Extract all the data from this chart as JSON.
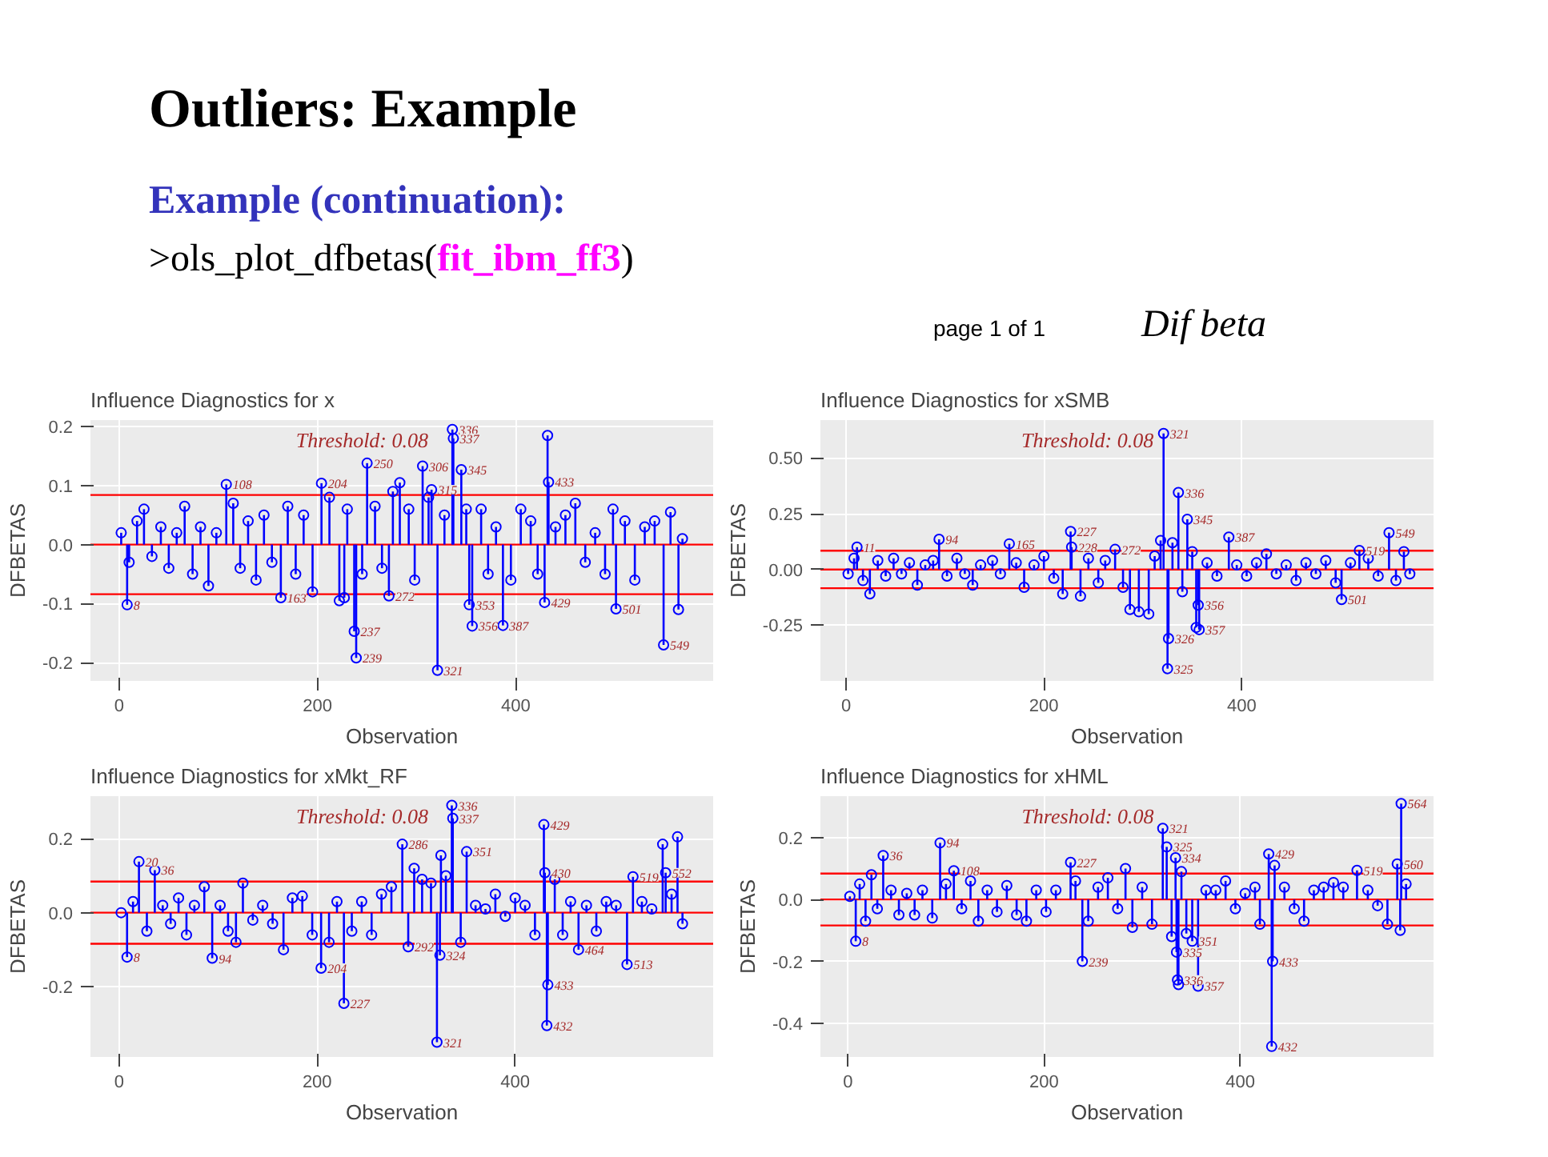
{
  "chart_data": [
    {
      "type": "other",
      "title": "Outliers: Example",
      "subtitle": "Example (continuation):",
      "annotations": [
        ">ols_plot_dfbetas(",
        "fit_ibm_ff3",
        ")",
        "page 1 of 1",
        "Dif beta"
      ]
    },
    {
      "type": "lollipop",
      "title": "Influence Diagnostics for x",
      "xlabel": "Observation",
      "ylabel": "DFBETAS",
      "marker": "circle",
      "grid": true,
      "xlim": [
        -29,
        599
      ],
      "xticks": [
        0,
        200,
        400
      ],
      "ylim": [
        -0.231,
        0.211
      ],
      "yticks": [
        {
          "value": -0.2,
          "label": "-0.2"
        },
        {
          "value": -0.1,
          "label": "-0.1"
        },
        {
          "value": 0,
          "label": "0.0"
        },
        {
          "value": 0.1,
          "label": "0.1"
        },
        {
          "value": 0.2,
          "label": "0.2"
        }
      ],
      "ref_lines": [
        {
          "axis": "y",
          "value": 0.084,
          "color": "#ff0000"
        },
        {
          "axis": "y",
          "value": 0,
          "color": "#ff0000"
        },
        {
          "axis": "y",
          "value": -0.084,
          "color": "#ff0000"
        }
      ],
      "series": [
        {
          "color": "#0000ff",
          "x": [
            2,
            8,
            10,
            18,
            25,
            33,
            42,
            50,
            58,
            66,
            74,
            82,
            90,
            98,
            108,
            115,
            122,
            130,
            138,
            146,
            154,
            163,
            170,
            178,
            186,
            195,
            204,
            212,
            222,
            227,
            230,
            237,
            239,
            245,
            250,
            258,
            265,
            272,
            276,
            283,
            292,
            298,
            306,
            312,
            315,
            321,
            328,
            336,
            337,
            345,
            350,
            353,
            356,
            365,
            372,
            380,
            387,
            395,
            405,
            415,
            422,
            429,
            432,
            433,
            440,
            450,
            460,
            470,
            480,
            490,
            498,
            501,
            510,
            520,
            530,
            540,
            549,
            556,
            564,
            568
          ],
          "values": [
            0.02,
            -0.102,
            -0.03,
            0.04,
            0.06,
            -0.02,
            0.03,
            -0.04,
            0.02,
            0.065,
            -0.05,
            0.03,
            -0.07,
            0.02,
            0.102,
            0.07,
            -0.04,
            0.04,
            -0.06,
            0.05,
            -0.03,
            -0.09,
            0.065,
            -0.05,
            0.05,
            -0.08,
            0.104,
            0.08,
            -0.095,
            -0.09,
            0.06,
            -0.147,
            -0.192,
            -0.05,
            0.138,
            0.065,
            -0.04,
            -0.087,
            0.09,
            0.105,
            0.06,
            -0.06,
            0.133,
            0.08,
            0.093,
            -0.213,
            0.05,
            0.195,
            0.18,
            0.127,
            0.06,
            -0.102,
            -0.138,
            0.06,
            -0.05,
            0.03,
            -0.137,
            -0.06,
            0.06,
            0.04,
            -0.05,
            -0.098,
            0.185,
            0.106,
            0.03,
            0.05,
            0.07,
            -0.03,
            0.02,
            -0.05,
            0.06,
            -0.109,
            0.04,
            -0.06,
            0.03,
            0.04,
            -0.17,
            0.055,
            -0.11,
            0.01
          ]
        }
      ],
      "annotations": [
        "Threshold: 0.08",
        {
          "text": "8",
          "x": 8,
          "y": -0.102
        },
        {
          "text": "108",
          "x": 108,
          "y": 0.102
        },
        {
          "text": "163",
          "x": 163,
          "y": -0.09
        },
        {
          "text": "204",
          "x": 204,
          "y": 0.104
        },
        {
          "text": "237",
          "x": 237,
          "y": -0.147
        },
        {
          "text": "239",
          "x": 239,
          "y": -0.192
        },
        {
          "text": "250",
          "x": 250,
          "y": 0.138
        },
        {
          "text": "272",
          "x": 272,
          "y": -0.087
        },
        {
          "text": "306",
          "x": 306,
          "y": 0.133
        },
        {
          "text": "315",
          "x": 315,
          "y": 0.093
        },
        {
          "text": "321",
          "x": 321,
          "y": -0.213
        },
        {
          "text": "336",
          "x": 336,
          "y": 0.195
        },
        {
          "text": "337",
          "x": 337,
          "y": 0.18
        },
        {
          "text": "345",
          "x": 345,
          "y": 0.127
        },
        {
          "text": "353",
          "x": 353,
          "y": -0.102
        },
        {
          "text": "356",
          "x": 356,
          "y": -0.138
        },
        {
          "text": "387",
          "x": 387,
          "y": -0.137
        },
        {
          "text": "429",
          "x": 429,
          "y": -0.098
        },
        {
          "text": "433",
          "x": 433,
          "y": 0.106
        },
        {
          "text": "501",
          "x": 501,
          "y": -0.109
        },
        {
          "text": "549",
          "x": 549,
          "y": -0.17
        }
      ]
    },
    {
      "type": "lollipop",
      "title": "Influence Diagnostics for xSMB",
      "xlabel": "Observation",
      "ylabel": "DFBETAS",
      "marker": "circle",
      "grid": true,
      "xlim": [
        -26,
        594
      ],
      "xticks": [
        0,
        200,
        400
      ],
      "ylim": [
        -0.5,
        0.67
      ],
      "yticks": [
        {
          "value": -0.25,
          "label": "-0.25"
        },
        {
          "value": 0,
          "label": "0.00"
        },
        {
          "value": 0.25,
          "label": "0.25"
        },
        {
          "value": 0.5,
          "label": "0.50"
        }
      ],
      "ref_lines": [
        {
          "axis": "y",
          "value": 0.084,
          "color": "#ff0000"
        },
        {
          "axis": "y",
          "value": 0,
          "color": "#ff0000"
        },
        {
          "axis": "y",
          "value": -0.084,
          "color": "#ff0000"
        }
      ],
      "series": [
        {
          "color": "#0000ff",
          "x": [
            2,
            8,
            11,
            17,
            24,
            32,
            40,
            48,
            56,
            64,
            72,
            80,
            88,
            94,
            102,
            112,
            120,
            128,
            136,
            148,
            156,
            165,
            172,
            180,
            190,
            200,
            210,
            219,
            227,
            228,
            237,
            245,
            255,
            262,
            272,
            280,
            287,
            296,
            306,
            312,
            318,
            321,
            325,
            326,
            330,
            336,
            340,
            345,
            350,
            354,
            356,
            357,
            365,
            375,
            387,
            395,
            405,
            415,
            425,
            435,
            445,
            455,
            465,
            475,
            485,
            495,
            501,
            510,
            519,
            528,
            538,
            549,
            556,
            564,
            570
          ],
          "values": [
            -0.02,
            0.05,
            0.1,
            -0.05,
            -0.11,
            0.04,
            -0.03,
            0.05,
            -0.02,
            0.03,
            -0.07,
            0.02,
            0.04,
            0.135,
            -0.03,
            0.05,
            -0.02,
            -0.07,
            0.02,
            0.04,
            -0.02,
            0.115,
            0.03,
            -0.08,
            0.02,
            0.06,
            -0.04,
            -0.11,
            0.17,
            0.1,
            -0.12,
            0.05,
            -0.06,
            0.04,
            0.09,
            -0.08,
            -0.18,
            -0.19,
            -0.2,
            0.06,
            0.13,
            0.61,
            -0.445,
            -0.31,
            0.12,
            0.345,
            -0.1,
            0.225,
            0.08,
            -0.26,
            -0.16,
            -0.27,
            0.03,
            -0.03,
            0.145,
            0.02,
            -0.03,
            0.03,
            0.07,
            -0.02,
            0.02,
            -0.05,
            0.03,
            -0.02,
            0.04,
            -0.06,
            -0.135,
            0.03,
            0.085,
            0.05,
            -0.03,
            0.165,
            -0.05,
            0.08,
            -0.02
          ]
        }
      ],
      "annotations": [
        "Threshold: 0.08",
        {
          "text": "11",
          "x": 11,
          "y": 0.1
        },
        {
          "text": "94",
          "x": 94,
          "y": 0.135
        },
        {
          "text": "165",
          "x": 165,
          "y": 0.115
        },
        {
          "text": "227",
          "x": 227,
          "y": 0.17
        },
        {
          "text": "228",
          "x": 228,
          "y": 0.1
        },
        {
          "text": "272",
          "x": 272,
          "y": 0.09
        },
        {
          "text": "321",
          "x": 321,
          "y": 0.61
        },
        {
          "text": "325",
          "x": 325,
          "y": -0.445
        },
        {
          "text": "326",
          "x": 326,
          "y": -0.31
        },
        {
          "text": "336",
          "x": 336,
          "y": 0.345
        },
        {
          "text": "345",
          "x": 345,
          "y": 0.225
        },
        {
          "text": "356",
          "x": 356,
          "y": -0.16
        },
        {
          "text": "357",
          "x": 357,
          "y": -0.27
        },
        {
          "text": "387",
          "x": 387,
          "y": 0.145
        },
        {
          "text": "501",
          "x": 501,
          "y": -0.135
        },
        {
          "text": "519",
          "x": 519,
          "y": 0.085
        },
        {
          "text": "549",
          "x": 549,
          "y": 0.165
        }
      ]
    },
    {
      "type": "lollipop",
      "title": "Influence Diagnostics for xMkt_RF",
      "xlabel": "Observation",
      "ylabel": "DFBETAS",
      "marker": "circle",
      "grid": true,
      "xlim": [
        -29,
        600
      ],
      "xticks": [
        0,
        200,
        400
      ],
      "ylim": [
        -0.39,
        0.315
      ],
      "yticks": [
        {
          "value": -0.2,
          "label": "-0.2"
        },
        {
          "value": 0,
          "label": "0.0"
        },
        {
          "value": 0.2,
          "label": "0.2"
        }
      ],
      "ref_lines": [
        {
          "axis": "y",
          "value": 0.084,
          "color": "#ff0000"
        },
        {
          "axis": "y",
          "value": 0,
          "color": "#ff0000"
        },
        {
          "axis": "y",
          "value": -0.084,
          "color": "#ff0000"
        }
      ],
      "series": [
        {
          "color": "#0000ff",
          "x": [
            2,
            8,
            14,
            20,
            28,
            36,
            44,
            52,
            60,
            68,
            76,
            86,
            94,
            102,
            110,
            118,
            125,
            135,
            145,
            155,
            166,
            175,
            185,
            195,
            204,
            212,
            220,
            227,
            235,
            245,
            255,
            265,
            275,
            286,
            292,
            298,
            306,
            315,
            321,
            324,
            325,
            330,
            336,
            337,
            345,
            351,
            360,
            370,
            380,
            390,
            400,
            410,
            420,
            429,
            430,
            432,
            433,
            440,
            448,
            456,
            464,
            472,
            482,
            492,
            502,
            513,
            519,
            528,
            538,
            549,
            552,
            558,
            564,
            569
          ],
          "values": [
            0.0,
            -0.12,
            0.03,
            0.138,
            -0.05,
            0.115,
            0.02,
            -0.03,
            0.04,
            -0.06,
            0.02,
            0.07,
            -0.123,
            0.02,
            -0.05,
            -0.08,
            0.08,
            -0.02,
            0.02,
            -0.03,
            -0.1,
            0.04,
            0.045,
            -0.06,
            -0.15,
            -0.08,
            0.03,
            -0.245,
            -0.05,
            0.03,
            -0.06,
            0.05,
            0.07,
            0.185,
            -0.092,
            0.12,
            0.09,
            0.08,
            -0.35,
            -0.115,
            0.155,
            0.1,
            0.29,
            0.255,
            -0.08,
            0.165,
            0.02,
            0.01,
            0.05,
            -0.01,
            0.04,
            0.02,
            -0.06,
            0.238,
            0.108,
            -0.305,
            -0.195,
            0.09,
            -0.06,
            0.03,
            -0.1,
            0.02,
            -0.05,
            0.03,
            0.02,
            -0.14,
            0.097,
            0.03,
            0.01,
            0.185,
            0.108,
            0.05,
            0.205,
            -0.03
          ]
        }
      ],
      "annotations": [
        "Threshold: 0.08",
        {
          "text": "8",
          "x": 8,
          "y": -0.12
        },
        {
          "text": "20",
          "x": 20,
          "y": 0.138
        },
        {
          "text": "36",
          "x": 36,
          "y": 0.115
        },
        {
          "text": "94",
          "x": 94,
          "y": -0.123
        },
        {
          "text": "204",
          "x": 204,
          "y": -0.15
        },
        {
          "text": "227",
          "x": 227,
          "y": -0.245
        },
        {
          "text": "286",
          "x": 286,
          "y": 0.185
        },
        {
          "text": "292",
          "x": 292,
          "y": -0.092
        },
        {
          "text": "321",
          "x": 321,
          "y": -0.35
        },
        {
          "text": "324",
          "x": 324,
          "y": -0.115
        },
        {
          "text": "336",
          "x": 336,
          "y": 0.29
        },
        {
          "text": "337",
          "x": 337,
          "y": 0.255
        },
        {
          "text": "351",
          "x": 351,
          "y": 0.165
        },
        {
          "text": "429",
          "x": 429,
          "y": 0.238
        },
        {
          "text": "430",
          "x": 430,
          "y": 0.108
        },
        {
          "text": "433",
          "x": 433,
          "y": -0.195
        },
        {
          "text": "432",
          "x": 432,
          "y": -0.305
        },
        {
          "text": "464",
          "x": 464,
          "y": -0.1
        },
        {
          "text": "513",
          "x": 513,
          "y": -0.14
        },
        {
          "text": "519",
          "x": 519,
          "y": 0.097
        },
        {
          "text": "552",
          "x": 552,
          "y": 0.108
        }
      ]
    },
    {
      "type": "lollipop",
      "title": "Influence Diagnostics for xHML",
      "xlabel": "Observation",
      "ylabel": "DFBETAS",
      "marker": "circle",
      "grid": true,
      "xlim": [
        -28,
        597
      ],
      "xticks": [
        0,
        200,
        400
      ],
      "ylim": [
        -0.509,
        0.334
      ],
      "yticks": [
        {
          "value": -0.4,
          "label": "-0.4"
        },
        {
          "value": -0.2,
          "label": "-0.2"
        },
        {
          "value": 0,
          "label": "0.0"
        },
        {
          "value": 0.2,
          "label": "0.2"
        }
      ],
      "ref_lines": [
        {
          "axis": "y",
          "value": 0.084,
          "color": "#ff0000"
        },
        {
          "axis": "y",
          "value": 0,
          "color": "#ff0000"
        },
        {
          "axis": "y",
          "value": -0.084,
          "color": "#ff0000"
        }
      ],
      "series": [
        {
          "color": "#0000ff",
          "x": [
            2,
            8,
            12,
            18,
            24,
            30,
            36,
            44,
            52,
            60,
            68,
            76,
            86,
            94,
            100,
            108,
            116,
            125,
            133,
            142,
            152,
            162,
            172,
            182,
            192,
            202,
            212,
            227,
            232,
            239,
            245,
            255,
            265,
            275,
            283,
            290,
            300,
            310,
            321,
            325,
            330,
            334,
            335,
            336,
            337,
            340,
            345,
            351,
            357,
            365,
            375,
            385,
            395,
            405,
            415,
            420,
            429,
            432,
            433,
            435,
            445,
            455,
            465,
            475,
            485,
            495,
            505,
            519,
            530,
            540,
            550,
            560,
            563,
            564,
            569
          ],
          "values": [
            0.01,
            -0.135,
            0.05,
            -0.07,
            0.08,
            -0.03,
            0.142,
            0.03,
            -0.05,
            0.02,
            -0.05,
            0.03,
            -0.06,
            0.183,
            0.05,
            0.093,
            -0.03,
            0.06,
            -0.07,
            0.03,
            -0.04,
            0.045,
            -0.05,
            -0.07,
            0.03,
            -0.04,
            0.03,
            0.12,
            0.06,
            -0.2,
            -0.07,
            0.04,
            0.07,
            -0.03,
            0.1,
            -0.09,
            0.04,
            -0.08,
            0.23,
            0.17,
            -0.12,
            0.135,
            -0.17,
            -0.26,
            -0.275,
            0.09,
            -0.11,
            -0.135,
            -0.28,
            0.03,
            0.03,
            0.06,
            -0.03,
            0.02,
            0.04,
            -0.08,
            0.147,
            -0.475,
            -0.2,
            0.11,
            0.04,
            -0.03,
            -0.07,
            0.03,
            0.04,
            0.055,
            0.04,
            0.094,
            0.03,
            -0.02,
            -0.08,
            0.115,
            -0.1,
            0.31,
            0.05
          ]
        }
      ],
      "annotations": [
        "Threshold: 0.08",
        {
          "text": "8",
          "x": 8,
          "y": -0.135
        },
        {
          "text": "36",
          "x": 36,
          "y": 0.142
        },
        {
          "text": "94",
          "x": 94,
          "y": 0.183
        },
        {
          "text": "108",
          "x": 108,
          "y": 0.093
        },
        {
          "text": "227",
          "x": 227,
          "y": 0.12
        },
        {
          "text": "239",
          "x": 239,
          "y": -0.2
        },
        {
          "text": "321",
          "x": 321,
          "y": 0.23
        },
        {
          "text": "325",
          "x": 325,
          "y": 0.17
        },
        {
          "text": "334",
          "x": 334,
          "y": 0.135
        },
        {
          "text": "335",
          "x": 335,
          "y": -0.17
        },
        {
          "text": "336",
          "x": 336,
          "y": -0.26
        },
        {
          "text": "357",
          "x": 357,
          "y": -0.28
        },
        {
          "text": "351",
          "x": 351,
          "y": -0.135
        },
        {
          "text": "429",
          "x": 429,
          "y": 0.147
        },
        {
          "text": "432",
          "x": 432,
          "y": -0.475
        },
        {
          "text": "433",
          "x": 433,
          "y": -0.2
        },
        {
          "text": "519",
          "x": 519,
          "y": 0.094
        },
        {
          "text": "560",
          "x": 560,
          "y": 0.115
        },
        {
          "text": "564",
          "x": 564,
          "y": 0.31
        }
      ]
    }
  ]
}
